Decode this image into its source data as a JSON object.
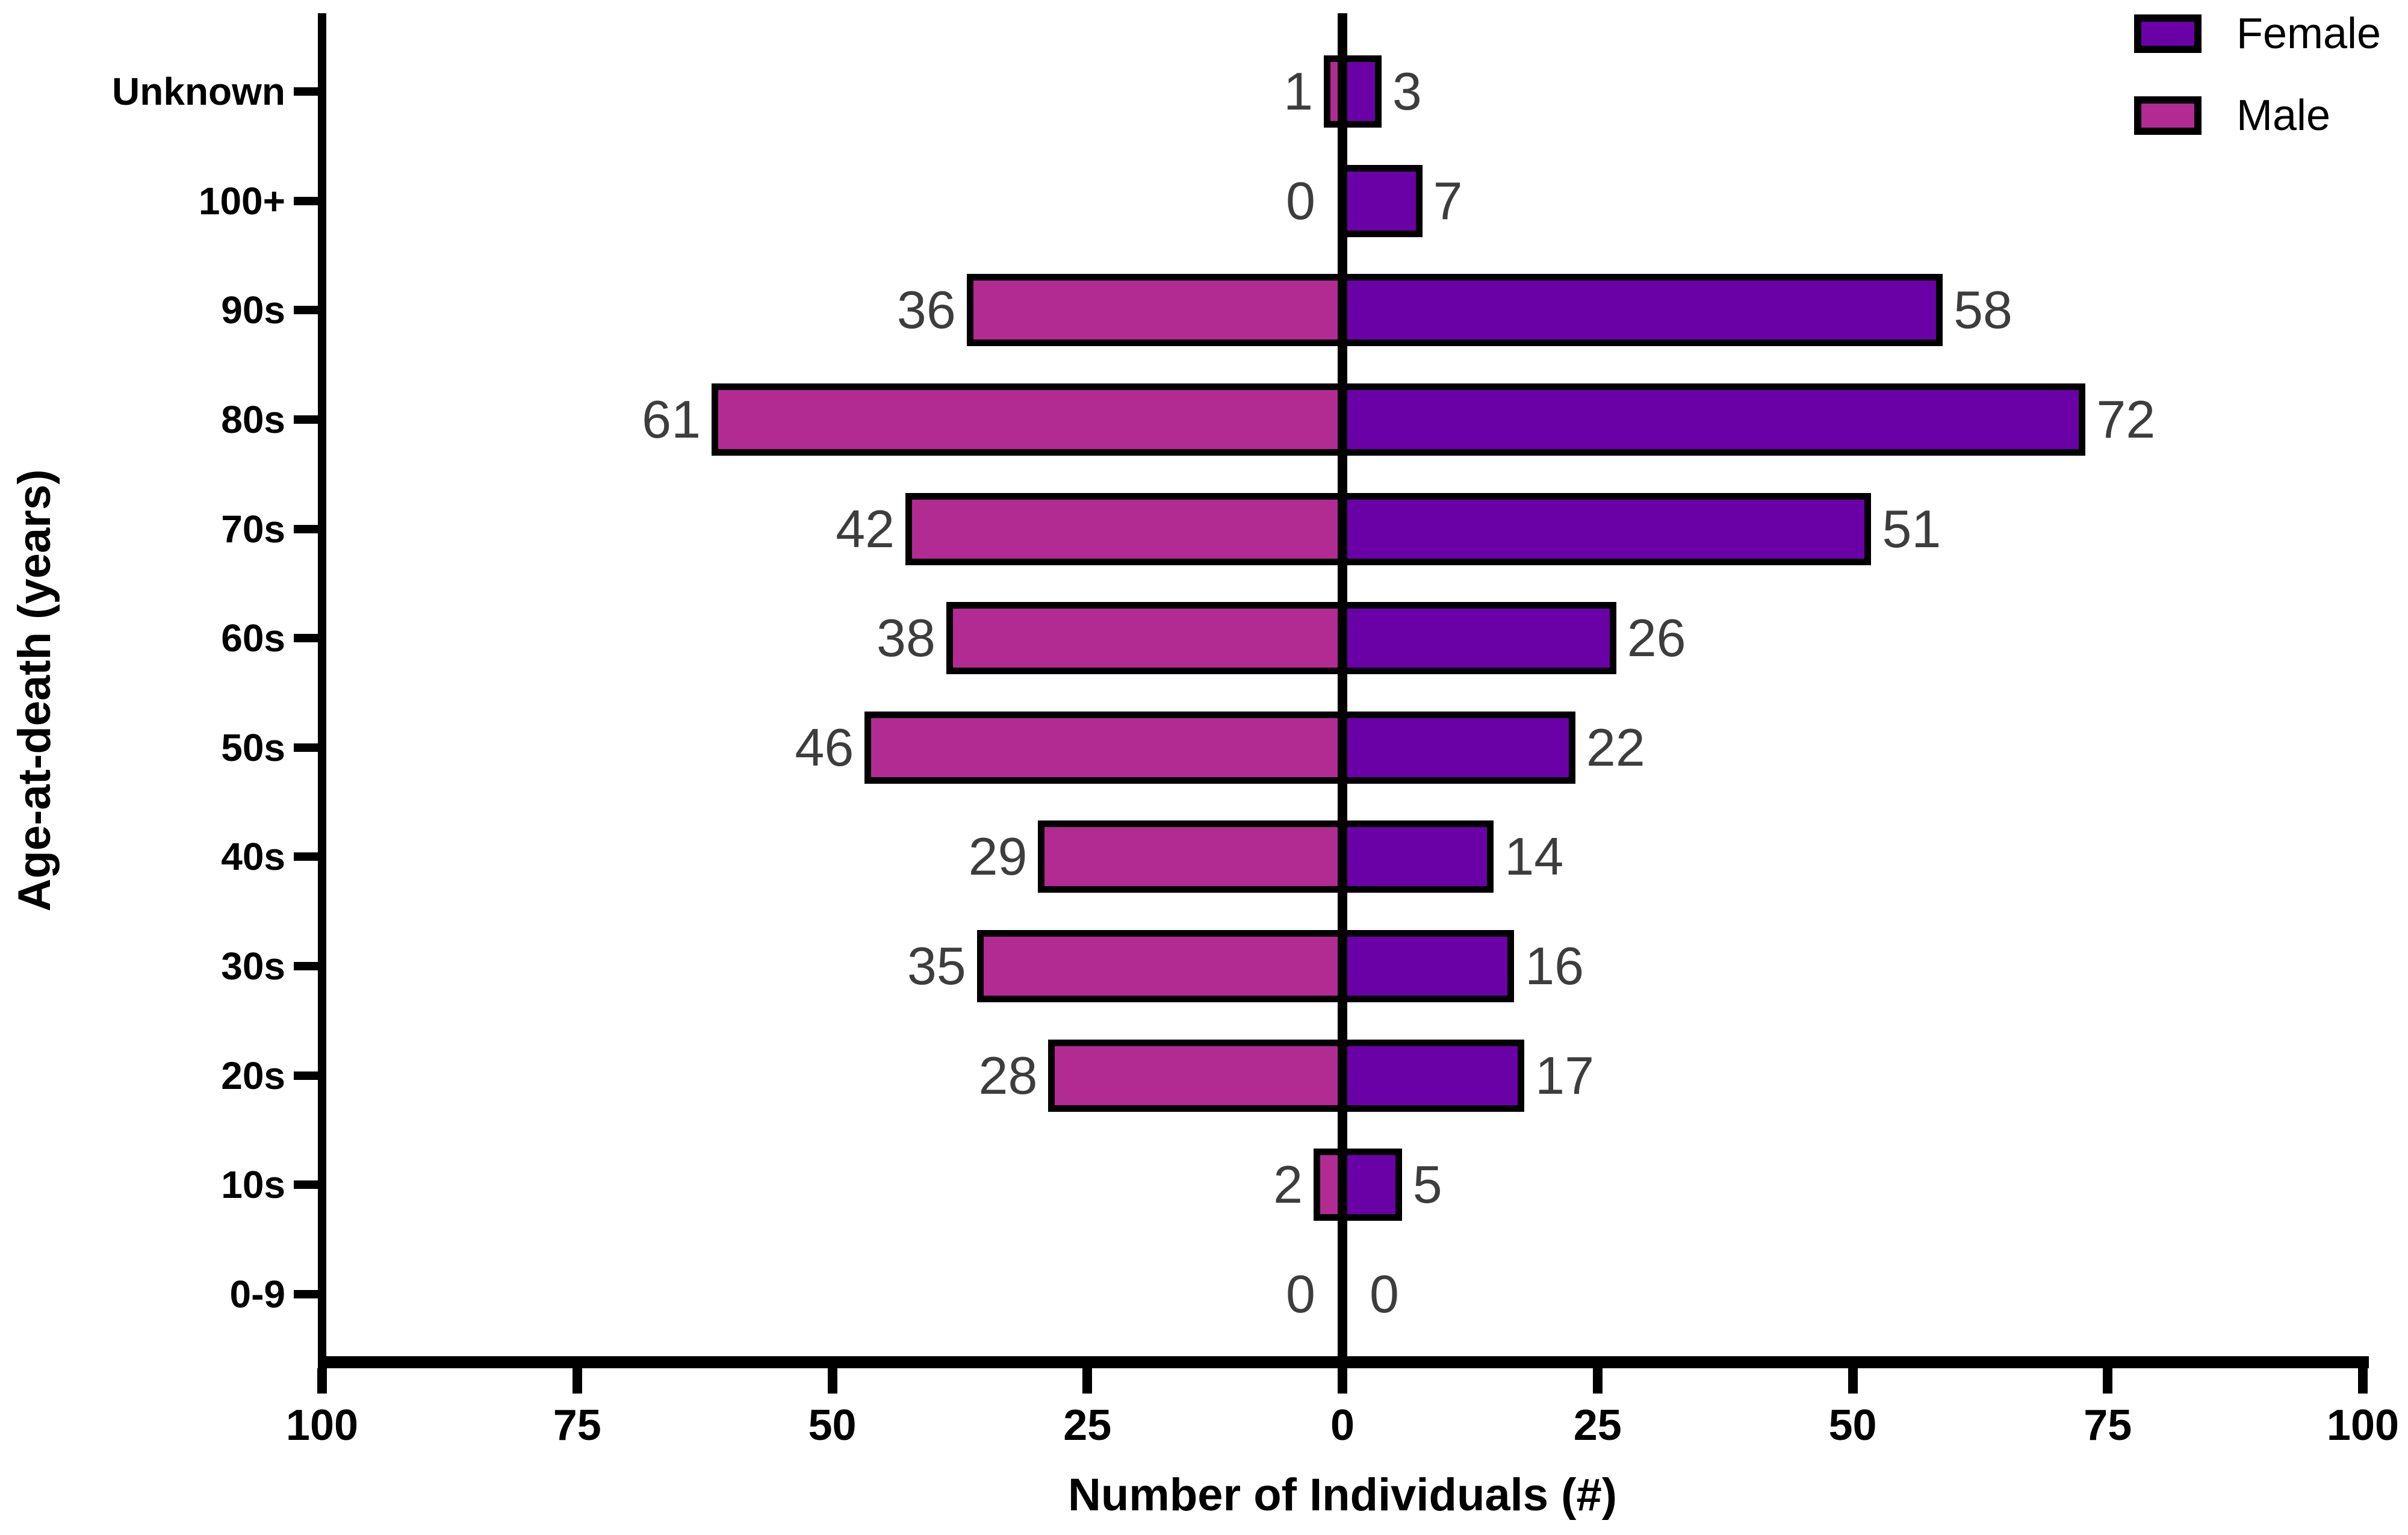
{
  "chart_data": {
    "type": "bar",
    "orientation": "horizontal",
    "variant": "population_pyramid",
    "title": "",
    "xlabel": "Number of Individuals (#)",
    "ylabel": "Age-at-death (years)",
    "categories": [
      "Unknown",
      "100+",
      "90s",
      "80s",
      "70s",
      "60s",
      "50s",
      "40s",
      "30s",
      "20s",
      "10s",
      "0-9"
    ],
    "series": [
      {
        "name": "Female",
        "side": "right",
        "color": "#6A01A7",
        "values": [
          3,
          7,
          58,
          72,
          51,
          26,
          22,
          14,
          16,
          17,
          5,
          0
        ]
      },
      {
        "name": "Male",
        "side": "left",
        "color": "#B22B92",
        "values": [
          1,
          0,
          36,
          61,
          42,
          38,
          46,
          29,
          35,
          28,
          2,
          0
        ]
      }
    ],
    "x_tick_labels": [
      "100",
      "75",
      "50",
      "25",
      "0",
      "25",
      "50",
      "75",
      "100"
    ],
    "x_tick_values": [
      -100,
      -75,
      -50,
      -25,
      0,
      25,
      50,
      75,
      100
    ],
    "xlim": [
      -100,
      100
    ],
    "grid": false,
    "legend_position": "top-right",
    "bar_outline_color": "#000000",
    "axis_color": "#000000",
    "value_label_color": "#3D3D3D",
    "background": "#FFFFFF"
  },
  "legend": {
    "items": [
      {
        "label": "Female",
        "color": "#6A01A7"
      },
      {
        "label": "Male",
        "color": "#B22B92"
      }
    ]
  }
}
